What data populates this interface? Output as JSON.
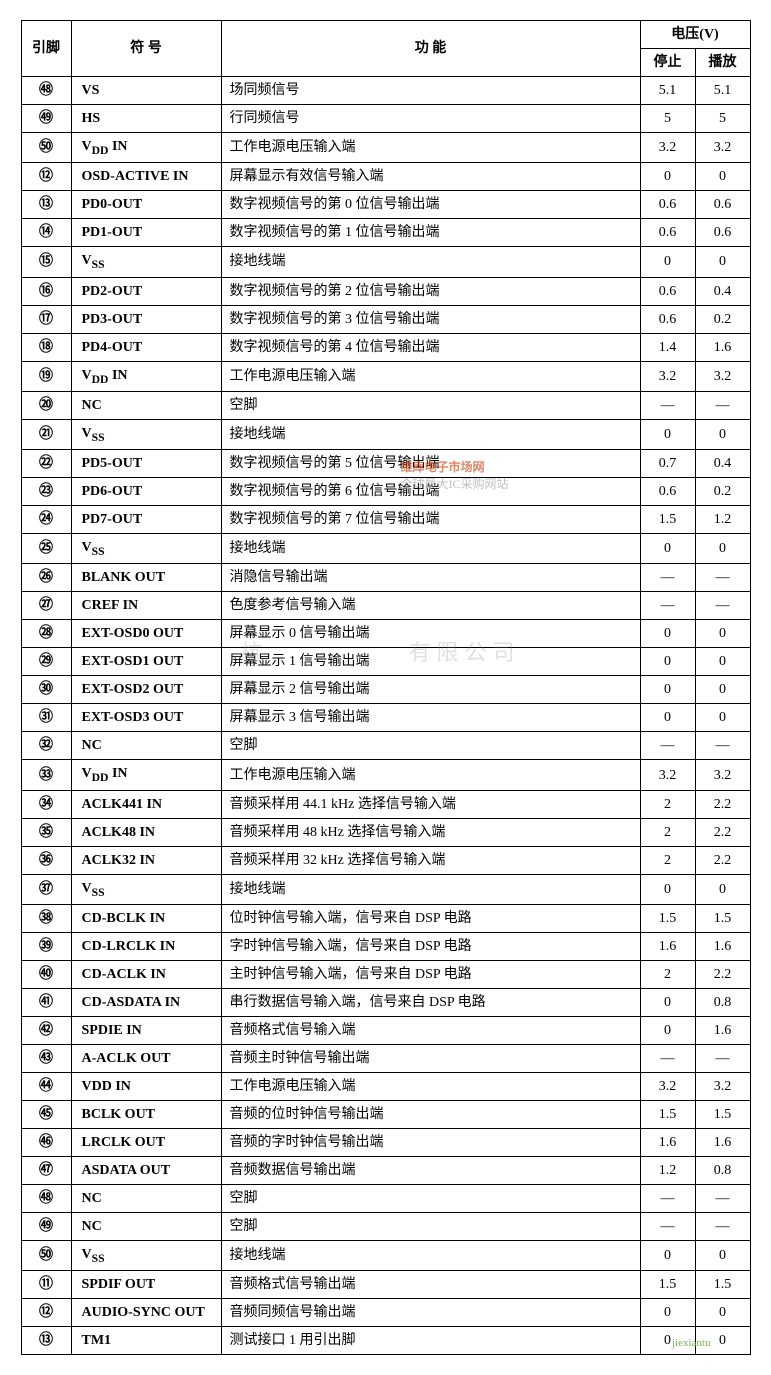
{
  "headers": {
    "pin": "引脚",
    "symbol": "符 号",
    "function": "功 能",
    "voltage": "电压(V)",
    "stop": "停止",
    "play": "播放"
  },
  "rows": [
    {
      "pin": "㊽",
      "symbol": "VS",
      "func": "场同频信号",
      "v1": "5.1",
      "v2": "5.1"
    },
    {
      "pin": "㊾",
      "symbol": "HS",
      "func": "行同频信号",
      "v1": "5",
      "v2": "5"
    },
    {
      "pin": "㊿",
      "symbol": "V<sub>DD</sub> IN",
      "func": "工作电源电压输入端",
      "v1": "3.2",
      "v2": "3.2"
    },
    {
      "pin": "⑫",
      "symbol": "OSD-ACTIVE IN",
      "func": "屏幕显示有效信号输入端",
      "v1": "0",
      "v2": "0"
    },
    {
      "pin": "⑬",
      "symbol": "PD0-OUT",
      "func": "数字视频信号的第 0 位信号输出端",
      "v1": "0.6",
      "v2": "0.6"
    },
    {
      "pin": "⑭",
      "symbol": "PD1-OUT",
      "func": "数字视频信号的第 1 位信号输出端",
      "v1": "0.6",
      "v2": "0.6"
    },
    {
      "pin": "⑮",
      "symbol": "V<sub>SS</sub>",
      "func": "接地线端",
      "v1": "0",
      "v2": "0"
    },
    {
      "pin": "⑯",
      "symbol": "PD2-OUT",
      "func": "数字视频信号的第 2 位信号输出端",
      "v1": "0.6",
      "v2": "0.4"
    },
    {
      "pin": "⑰",
      "symbol": "PD3-OUT",
      "func": "数字视频信号的第 3 位信号输出端",
      "v1": "0.6",
      "v2": "0.2"
    },
    {
      "pin": "⑱",
      "symbol": "PD4-OUT",
      "func": "数字视频信号的第 4 位信号输出端",
      "v1": "1.4",
      "v2": "1.6"
    },
    {
      "pin": "⑲",
      "symbol": "V<sub>DD</sub> IN",
      "func": "工作电源电压输入端",
      "v1": "3.2",
      "v2": "3.2"
    },
    {
      "pin": "⑳",
      "symbol": "NC",
      "func": "空脚",
      "v1": "—",
      "v2": "—"
    },
    {
      "pin": "㉑",
      "symbol": "V<sub>SS</sub>",
      "func": "接地线端",
      "v1": "0",
      "v2": "0"
    },
    {
      "pin": "㉒",
      "symbol": "PD5-OUT",
      "func": "数字视频信号的第 5 位信号输出端",
      "v1": "0.7",
      "v2": "0.4"
    },
    {
      "pin": "㉓",
      "symbol": "PD6-OUT",
      "func": "数字视频信号的第 6 位信号输出端",
      "v1": "0.6",
      "v2": "0.2"
    },
    {
      "pin": "㉔",
      "symbol": "PD7-OUT",
      "func": "数字视频信号的第 7 位信号输出端",
      "v1": "1.5",
      "v2": "1.2"
    },
    {
      "pin": "㉕",
      "symbol": "V<sub>SS</sub>",
      "func": "接地线端",
      "v1": "0",
      "v2": "0"
    },
    {
      "pin": "㉖",
      "symbol": "BLANK OUT",
      "func": "消隐信号输出端",
      "v1": "—",
      "v2": "—"
    },
    {
      "pin": "㉗",
      "symbol": "CREF IN",
      "func": "色度参考信号输入端",
      "v1": "—",
      "v2": "—"
    },
    {
      "pin": "㉘",
      "symbol": "EXT-OSD0 OUT",
      "func": "屏幕显示 0 信号输出端",
      "v1": "0",
      "v2": "0"
    },
    {
      "pin": "㉙",
      "symbol": "EXT-OSD1 OUT",
      "func": "屏幕显示 1 信号输出端",
      "v1": "0",
      "v2": "0"
    },
    {
      "pin": "㉚",
      "symbol": "EXT-OSD2 OUT",
      "func": "屏幕显示 2 信号输出端",
      "v1": "0",
      "v2": "0"
    },
    {
      "pin": "㉛",
      "symbol": "EXT-OSD3 OUT",
      "func": "屏幕显示 3 信号输出端",
      "v1": "0",
      "v2": "0"
    },
    {
      "pin": "㉜",
      "symbol": "NC",
      "func": "空脚",
      "v1": "—",
      "v2": "—"
    },
    {
      "pin": "㉝",
      "symbol": "V<sub>DD</sub> IN",
      "func": "工作电源电压输入端",
      "v1": "3.2",
      "v2": "3.2"
    },
    {
      "pin": "㉞",
      "symbol": "ACLK441 IN",
      "func": "音频采样用 44.1 kHz 选择信号输入端",
      "v1": "2",
      "v2": "2.2"
    },
    {
      "pin": "㉟",
      "symbol": "ACLK48 IN",
      "func": "音频采样用 48 kHz 选择信号输入端",
      "v1": "2",
      "v2": "2.2"
    },
    {
      "pin": "㊱",
      "symbol": "ACLK32 IN",
      "func": "音频采样用 32 kHz 选择信号输入端",
      "v1": "2",
      "v2": "2.2"
    },
    {
      "pin": "㊲",
      "symbol": "V<sub>SS</sub>",
      "func": "接地线端",
      "v1": "0",
      "v2": "0"
    },
    {
      "pin": "㊳",
      "symbol": "CD-BCLK IN",
      "func": "位时钟信号输入端，信号来自 DSP 电路",
      "v1": "1.5",
      "v2": "1.5"
    },
    {
      "pin": "㊴",
      "symbol": "CD-LRCLK IN",
      "func": "字时钟信号输入端，信号来自 DSP 电路",
      "v1": "1.6",
      "v2": "1.6"
    },
    {
      "pin": "㊵",
      "symbol": "CD-ACLK IN",
      "func": "主时钟信号输入端，信号来自 DSP 电路",
      "v1": "2",
      "v2": "2.2"
    },
    {
      "pin": "㊶",
      "symbol": "CD-ASDATA IN",
      "func": "串行数据信号输入端，信号来自 DSP 电路",
      "v1": "0",
      "v2": "0.8"
    },
    {
      "pin": "㊷",
      "symbol": "SPDIE IN",
      "func": "音频格式信号输入端",
      "v1": "0",
      "v2": "1.6"
    },
    {
      "pin": "㊸",
      "symbol": "A-ACLK OUT",
      "func": "音频主时钟信号输出端",
      "v1": "—",
      "v2": "—"
    },
    {
      "pin": "㊹",
      "symbol": "VDD IN",
      "func": "工作电源电压输入端",
      "v1": "3.2",
      "v2": "3.2"
    },
    {
      "pin": "㊺",
      "symbol": "BCLK OUT",
      "func": "音频的位时钟信号输出端",
      "v1": "1.5",
      "v2": "1.5"
    },
    {
      "pin": "㊻",
      "symbol": "LRCLK OUT",
      "func": "音频的字时钟信号输出端",
      "v1": "1.6",
      "v2": "1.6"
    },
    {
      "pin": "㊼",
      "symbol": "ASDATA OUT",
      "func": "音频数据信号输出端",
      "v1": "1.2",
      "v2": "0.8"
    },
    {
      "pin": "㊽",
      "symbol": "NC",
      "func": "空脚",
      "v1": "—",
      "v2": "—"
    },
    {
      "pin": "㊾",
      "symbol": "NC",
      "func": "空脚",
      "v1": "—",
      "v2": "—"
    },
    {
      "pin": "㊿",
      "symbol": "V<sub>SS</sub>",
      "func": "接地线端",
      "v1": "0",
      "v2": "0"
    },
    {
      "pin": "⑪",
      "symbol": "SPDIF OUT",
      "func": "音频格式信号输出端",
      "v1": "1.5",
      "v2": "1.5"
    },
    {
      "pin": "⑫",
      "symbol": "AUDIO-SYNC OUT",
      "func": "音频同频信号输出端",
      "v1": "0",
      "v2": "0"
    },
    {
      "pin": "⑬",
      "symbol": "TM1",
      "func": "测试接口 1 用引出脚",
      "v1": "0",
      "v2": "0"
    }
  ],
  "watermarks": {
    "w1a": "维库电子市场网",
    "w1b": "全球最大IC采购网站",
    "w2": "杭　　　　　有限公司",
    "w3": "jiexiantu"
  },
  "style": {
    "background": "#ffffff",
    "text_color": "#000000",
    "border_color": "#000000",
    "font_family": "SimSun",
    "header_fontsize": 14,
    "cell_fontsize": 14
  }
}
